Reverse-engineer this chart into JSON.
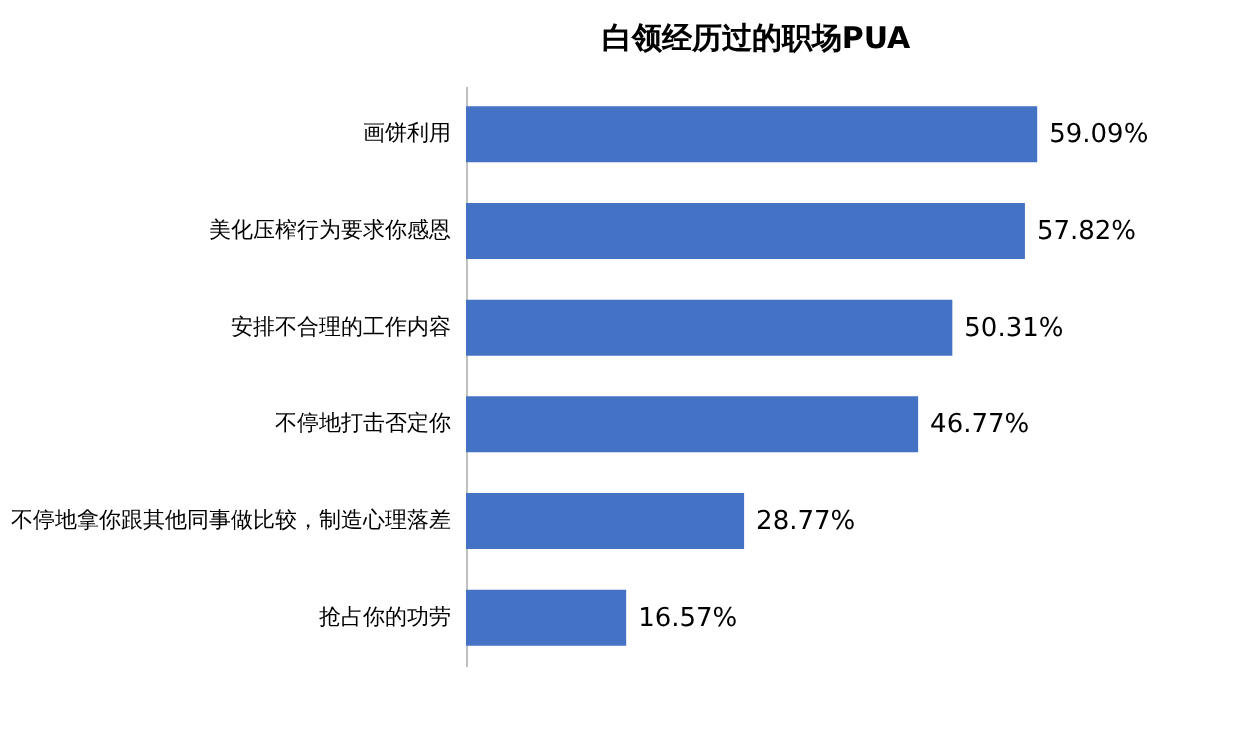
{
  "chart_data": {
    "type": "bar",
    "orientation": "horizontal",
    "title": "白领经历过的职场PUA",
    "categories": [
      "画饼利用",
      "美化压榨行为要求你感恩",
      "安排不合理的工作内容",
      "不停地打击否定你",
      "不停地拿你跟其他同事做比较，制造心理落差",
      "抢占你的功劳"
    ],
    "values": [
      59.09,
      57.82,
      50.31,
      46.77,
      28.77,
      16.57
    ],
    "value_labels": [
      "59.09%",
      "57.82%",
      "50.31%",
      "46.77%",
      "28.77%",
      "16.57%"
    ],
    "color": "#4472c4"
  }
}
